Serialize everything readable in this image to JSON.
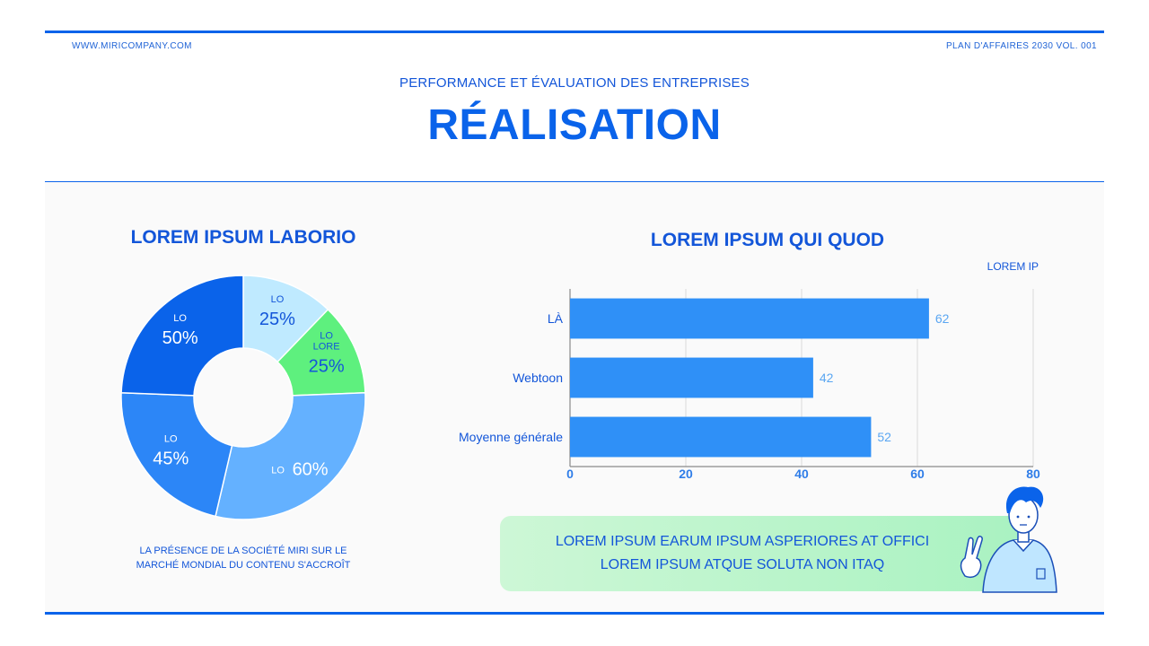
{
  "header": {
    "website": "WWW.MIRICOMPANY.COM",
    "doc_label": "PLAN D'AFFAIRES 2030 VOL. 001",
    "subtitle": "PERFORMANCE ET ÉVALUATION DES ENTREPRISES",
    "title": "RÉALISATION"
  },
  "donut": {
    "caption_line1": "LA PRÉSENCE DE LA SOCIÉTÉ MIRI SUR LE",
    "caption_line2": "MARCHÉ MONDIAL DU CONTENU S'ACCROÎT"
  },
  "callout": {
    "line1": "LOREM IPSUM EARUM IPSUM ASPERIORES AT OFFICI",
    "line2": "LOREM IPSUM ATQUE SOLUTA NON ITAQ"
  },
  "chart_data": [
    {
      "type": "pie",
      "title": "LOREM IPSUM LABORIO",
      "slices": [
        {
          "label": "LO",
          "value": 25,
          "value_label": "25%",
          "color": "#bfeaff"
        },
        {
          "label": "LO\nLORE",
          "value": 25,
          "value_label": "25%",
          "color": "#5ef07e"
        },
        {
          "label": "LO",
          "value": 60,
          "value_label": "60%",
          "color": "#64b1ff"
        },
        {
          "label": "LO",
          "value": 45,
          "value_label": "45%",
          "color": "#2c86f7"
        },
        {
          "label": "LO",
          "value": 50,
          "value_label": "50%",
          "color": "#0a63ea"
        }
      ]
    },
    {
      "type": "bar",
      "orientation": "horizontal",
      "title": "LOREM IPSUM QUI QUOD",
      "legend": "LOREM IP",
      "categories": [
        "LÀ",
        "Webtoon",
        "Moyenne générale"
      ],
      "values": [
        62,
        42,
        52
      ],
      "xlim": [
        0,
        80
      ],
      "ticks": [
        0,
        20,
        40,
        60,
        80
      ],
      "grid": true,
      "color": "#2f90f7"
    }
  ]
}
